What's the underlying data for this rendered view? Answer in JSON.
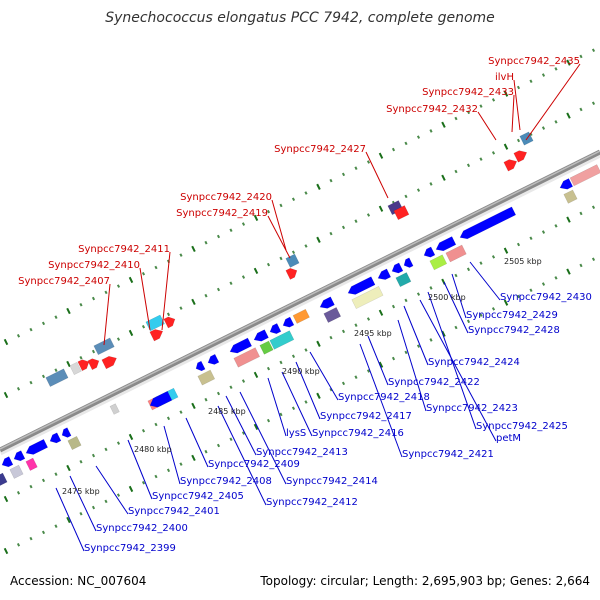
{
  "title": "Synechococcus elongatus PCC 7942, complete genome",
  "accession": "Accession: NC_007604",
  "topology": "Topology: circular; Length: 2,695,903 bp; Genes: 2,664",
  "colors": {
    "forward_label": "#cc0000",
    "reverse_label": "#0000cc",
    "backbone": "#888888",
    "tick": "#227722"
  },
  "kbp_labels": [
    "2475 kbp",
    "2480 kbp",
    "2485 kbp",
    "2490 kbp",
    "2495 kbp",
    "2500 kbp",
    "2505 kbp"
  ],
  "forward_genes": [
    "Synpcc7942_2407",
    "Synpcc7942_2410",
    "Synpcc7942_2411",
    "Synpcc7942_2419",
    "Synpcc7942_2420",
    "Synpcc7942_2427",
    "Synpcc7942_2432",
    "Synpcc7942_2433",
    "ilvH",
    "Synpcc7942_2435"
  ],
  "reverse_genes": [
    "Synpcc7942_2399",
    "Synpcc7942_2400",
    "Synpcc7942_2401",
    "Synpcc7942_2405",
    "Synpcc7942_2408",
    "Synpcc7942_2409",
    "Synpcc7942_2412",
    "Synpcc7942_2413",
    "Synpcc7942_2414",
    "lysS",
    "Synpcc7942_2416",
    "Synpcc7942_2417",
    "Synpcc7942_2418",
    "Synpcc7942_2421",
    "Synpcc7942_2422",
    "Synpcc7942_2423",
    "Synpcc7942_2424",
    "petM",
    "Synpcc7942_2425",
    "Synpcc7942_2428",
    "Synpcc7942_2429",
    "Synpcc7942_2430"
  ]
}
